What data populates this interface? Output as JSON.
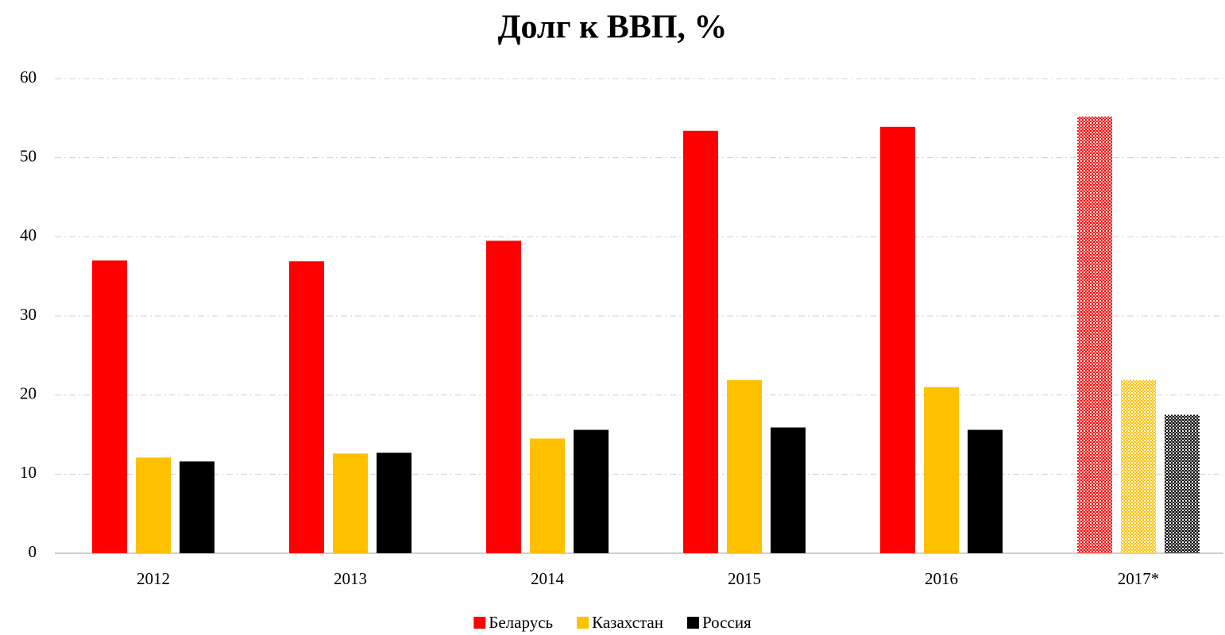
{
  "chart_data": {
    "type": "bar",
    "title": "Долг к ВВП, %",
    "categories": [
      "2012",
      "2013",
      "2014",
      "2015",
      "2016",
      "2017*"
    ],
    "series": [
      {
        "name": "Беларусь",
        "color": "#ff0000",
        "values": [
          37.0,
          36.9,
          39.5,
          53.4,
          53.9,
          55.2
        ]
      },
      {
        "name": "Казахстан",
        "color": "#ffc000",
        "values": [
          12.1,
          12.6,
          14.5,
          21.9,
          21.0,
          21.9
        ]
      },
      {
        "name": "Россия",
        "color": "#000000",
        "values": [
          11.6,
          12.7,
          15.6,
          15.9,
          15.6,
          17.5
        ]
      }
    ],
    "hatched_category": "2017*",
    "ylim": [
      0,
      60
    ],
    "yticks": [
      0,
      10,
      20,
      30,
      40,
      50,
      60
    ],
    "grid": true,
    "legend": "bottom"
  }
}
